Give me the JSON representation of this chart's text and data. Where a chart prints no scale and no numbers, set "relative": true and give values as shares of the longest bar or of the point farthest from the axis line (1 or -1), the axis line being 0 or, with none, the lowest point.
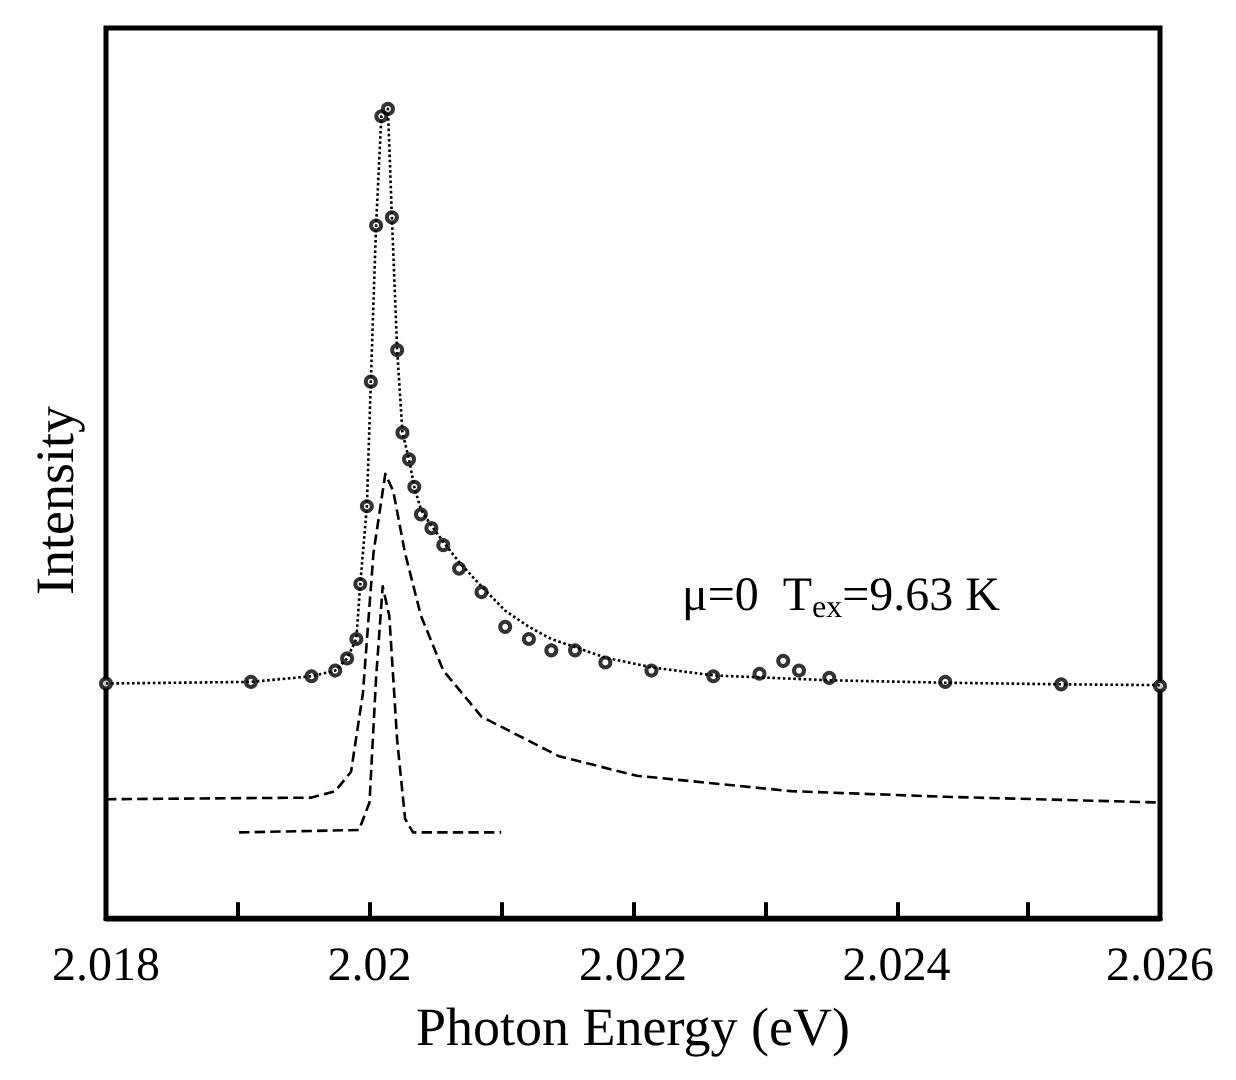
{
  "chart_data": {
    "type": "line",
    "relative": true,
    "xlabel": "Photon Energy (eV)",
    "ylabel": "Intensity",
    "xlim": [
      2.018,
      2.026
    ],
    "xticks": [
      2.018,
      {
        "value": 2.019,
        "label": null
      },
      2.02,
      {
        "value": 2.021,
        "label": null
      },
      2.022,
      {
        "value": 2.023,
        "label": null
      },
      2.024,
      {
        "value": 2.025,
        "label": null
      },
      2.026
    ],
    "grid": false,
    "annotations": [
      "μ=0  T$_{ex}$=9.63 K"
    ],
    "series": [
      {
        "type": "scatter",
        "marker": "circle",
        "color": "#000000",
        "x": [
          2.018,
          2.0191,
          2.01956,
          2.01974,
          2.01983,
          2.0199,
          2.01993,
          2.01998,
          2.02001,
          2.02005,
          2.02009,
          2.02014,
          2.02017,
          2.02021,
          2.02025,
          2.0203,
          2.02034,
          2.02039,
          2.02047,
          2.02056,
          2.02068,
          2.02085,
          2.02103,
          2.02121,
          2.02138,
          2.02156,
          2.02179,
          2.02214,
          2.02261,
          2.02296,
          2.02314,
          2.02326,
          2.02349,
          2.02437,
          2.02525,
          2.026
        ],
        "values": [
          0.29,
          0.292,
          0.299,
          0.306,
          0.321,
          0.345,
          0.413,
          0.509,
          0.663,
          0.856,
          0.991,
          1.0,
          0.866,
          0.702,
          0.6,
          0.567,
          0.533,
          0.499,
          0.482,
          0.461,
          0.432,
          0.403,
          0.36,
          0.345,
          0.331,
          0.331,
          0.316,
          0.306,
          0.299,
          0.302,
          0.318,
          0.306,
          0.297,
          0.292,
          0.289,
          0.287
        ]
      },
      {
        "line_style": "dotted",
        "color": "#000000",
        "x": [
          2.018,
          2.0191,
          2.01956,
          2.01974,
          2.01983,
          2.0199,
          2.01993,
          2.01998,
          2.02001,
          2.02005,
          2.02009,
          2.02014,
          2.02017,
          2.02021,
          2.02025,
          2.0203,
          2.02034,
          2.02039,
          2.02047,
          2.02056,
          2.02068,
          2.02085,
          2.02103,
          2.02121,
          2.02138,
          2.02156,
          2.02179,
          2.02214,
          2.02261,
          2.02349,
          2.02437,
          2.02525,
          2.026
        ],
        "values": [
          0.29,
          0.292,
          0.299,
          0.306,
          0.321,
          0.345,
          0.413,
          0.509,
          0.663,
          0.856,
          0.991,
          1.0,
          0.866,
          0.702,
          0.6,
          0.567,
          0.533,
          0.505,
          0.485,
          0.465,
          0.44,
          0.41,
          0.38,
          0.36,
          0.345,
          0.335,
          0.322,
          0.31,
          0.3,
          0.294,
          0.291,
          0.289,
          0.288
        ]
      },
      {
        "line_style": "dashed",
        "color": "#000000",
        "x": [
          2.018,
          2.01956,
          2.01974,
          2.01986,
          2.01995,
          2.02003,
          2.02012,
          2.02018,
          2.02027,
          2.02039,
          2.02056,
          2.02085,
          2.02144,
          2.02203,
          2.0232,
          2.02437,
          2.026
        ],
        "values": [
          0.147,
          0.149,
          0.157,
          0.181,
          0.278,
          0.451,
          0.549,
          0.528,
          0.451,
          0.374,
          0.306,
          0.249,
          0.2,
          0.176,
          0.157,
          0.15,
          0.143
        ]
      },
      {
        "line_style": "dashed",
        "color": "#000000",
        "x": [
          2.01901,
          2.01992,
          2.02,
          2.02005,
          2.0201,
          2.02015,
          2.02021,
          2.02027,
          2.02033,
          2.021
        ],
        "values": [
          0.106,
          0.109,
          0.143,
          0.297,
          0.41,
          0.374,
          0.22,
          0.123,
          0.106,
          0.106
        ]
      }
    ]
  }
}
